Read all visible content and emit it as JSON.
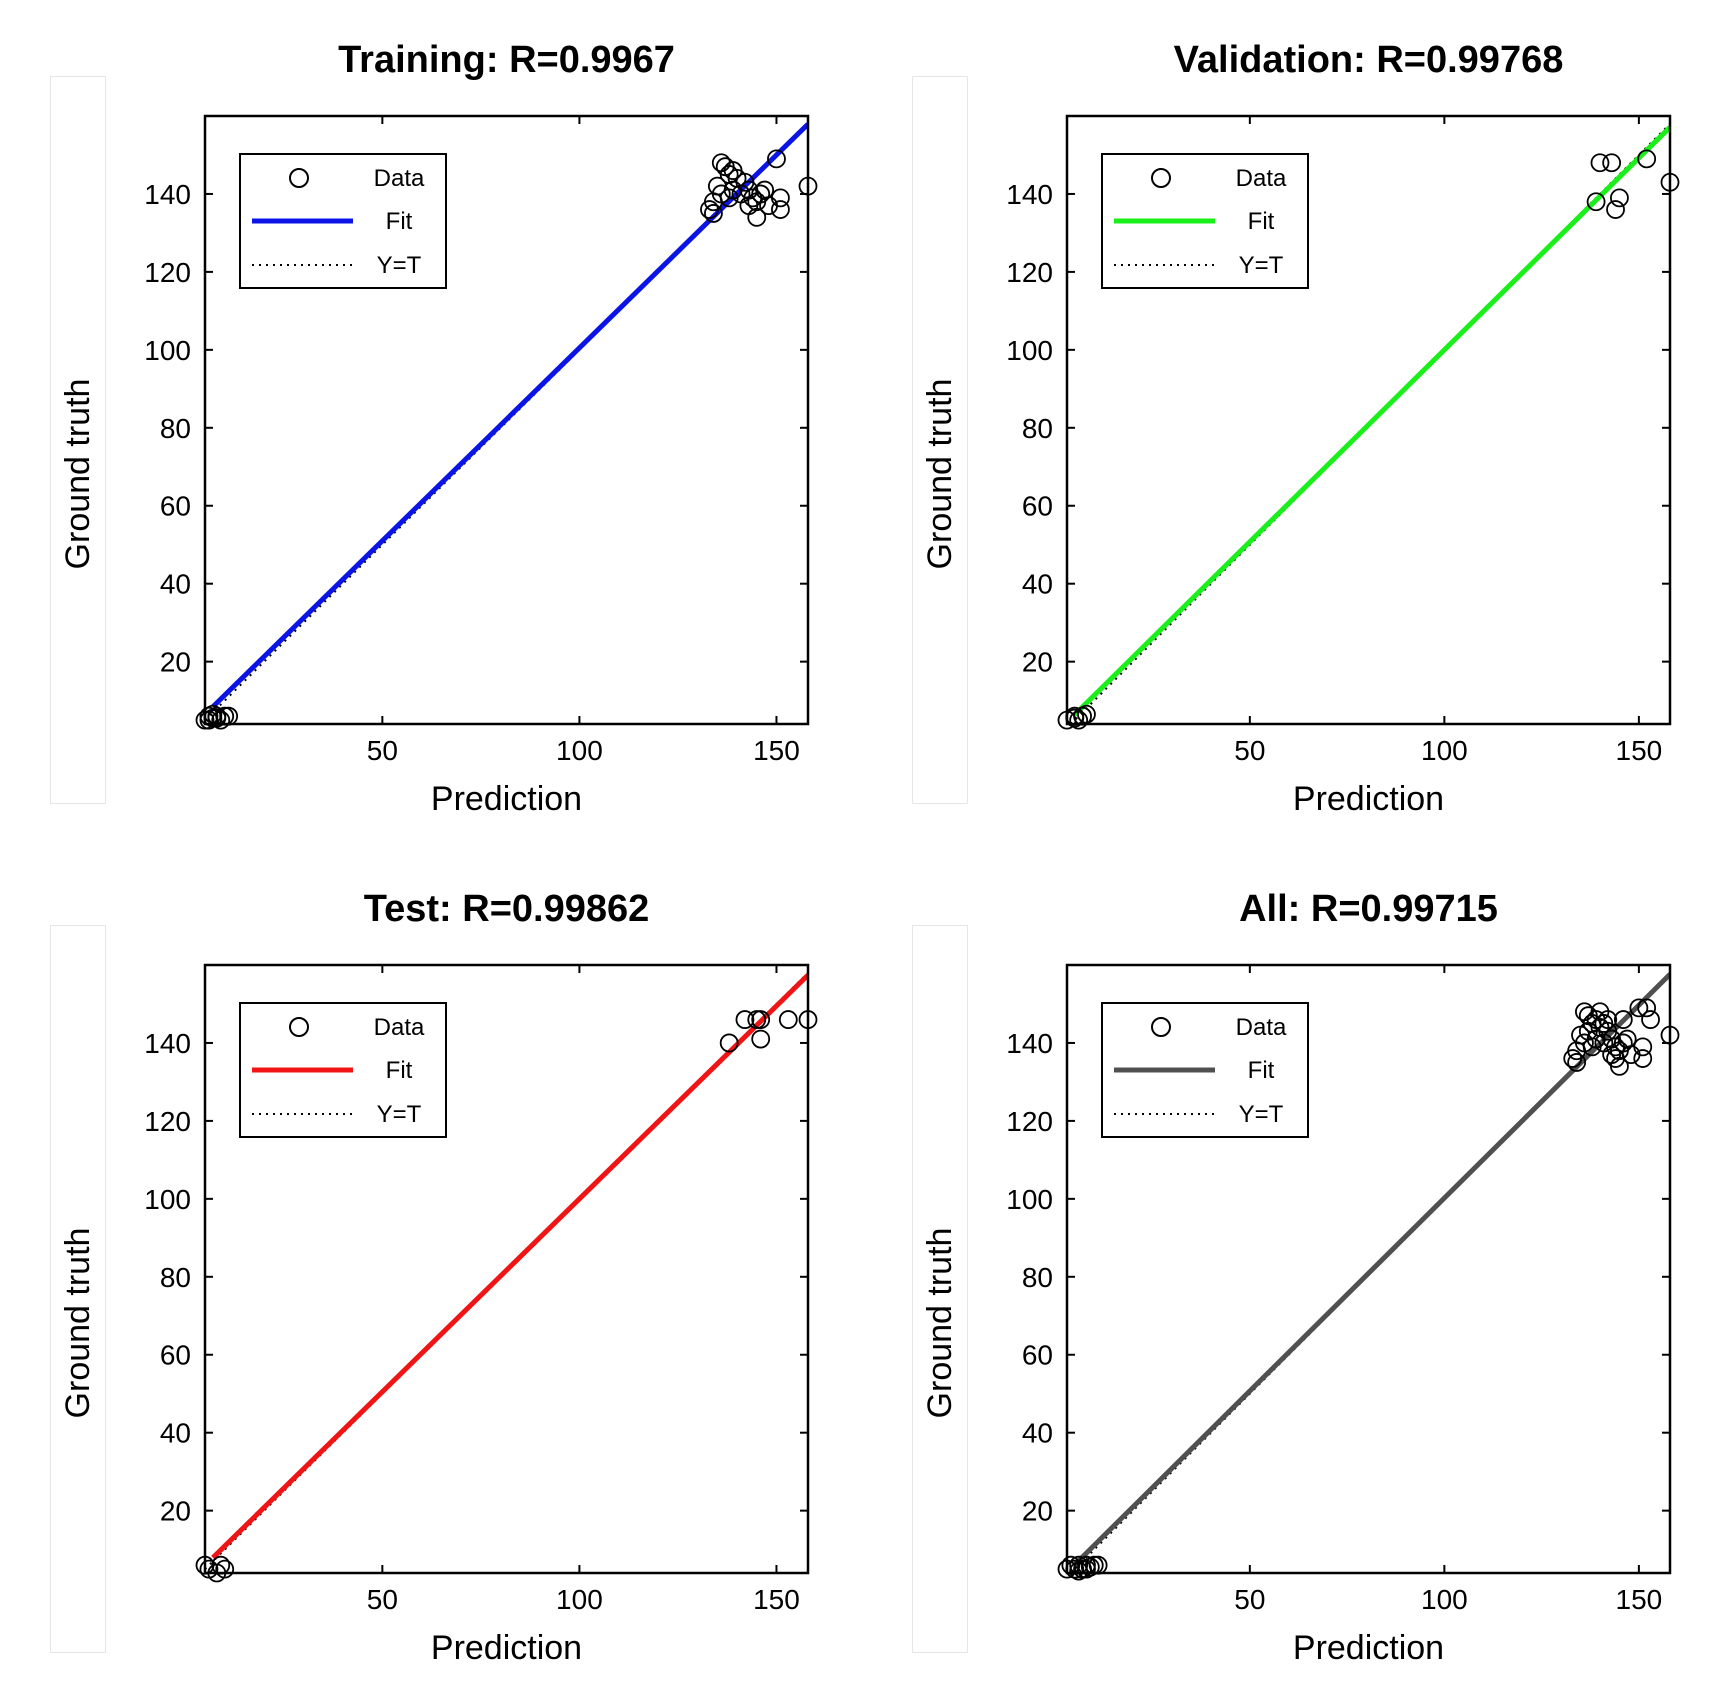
{
  "chart_data": [
    {
      "type": "scatter",
      "title": "Training: R=0.9967",
      "xlabel": "Prediction",
      "ylabel": "Ground truth",
      "xlim": [
        5,
        158
      ],
      "ylim": [
        4,
        160
      ],
      "xticks": [
        50,
        100,
        150
      ],
      "yticks": [
        20,
        40,
        60,
        80,
        100,
        120,
        140
      ],
      "fit_color": "#0a14e6",
      "fit": {
        "slope": 0.99,
        "intercept": 1.5
      },
      "legend": {
        "position": "top-left",
        "items": [
          "Data",
          "Fit",
          "Y=T"
        ]
      },
      "points": [
        [
          5,
          5
        ],
        [
          6,
          6
        ],
        [
          7,
          5.5
        ],
        [
          8,
          6
        ],
        [
          9,
          5
        ],
        [
          10,
          6
        ],
        [
          6,
          5
        ],
        [
          7,
          6.5
        ],
        [
          8,
          5.5
        ],
        [
          11,
          6
        ],
        [
          133,
          136
        ],
        [
          134,
          138
        ],
        [
          135,
          142
        ],
        [
          136,
          148
        ],
        [
          137,
          147
        ],
        [
          138,
          145
        ],
        [
          139,
          141
        ],
        [
          140,
          144
        ],
        [
          141,
          140
        ],
        [
          142,
          143
        ],
        [
          143,
          141
        ],
        [
          144,
          139
        ],
        [
          145,
          138
        ],
        [
          146,
          140
        ],
        [
          147,
          141
        ],
        [
          148,
          137
        ],
        [
          150,
          149
        ],
        [
          151,
          139
        ],
        [
          151,
          136
        ],
        [
          158,
          142
        ],
        [
          136,
          140
        ],
        [
          139,
          146
        ],
        [
          143,
          137
        ],
        [
          145,
          134
        ],
        [
          134,
          135
        ],
        [
          138,
          139
        ]
      ]
    },
    {
      "type": "scatter",
      "title": "Validation: R=0.99768",
      "xlabel": "Prediction",
      "ylabel": "Ground truth",
      "xlim": [
        3,
        158
      ],
      "ylim": [
        4,
        160
      ],
      "xticks": [
        50,
        100,
        150
      ],
      "yticks": [
        20,
        40,
        60,
        80,
        100,
        120,
        140
      ],
      "fit_color": "#19f019",
      "fit": {
        "slope": 0.985,
        "intercept": 1.5
      },
      "legend": {
        "position": "top-left",
        "items": [
          "Data",
          "Fit",
          "Y=T"
        ]
      },
      "points": [
        [
          3,
          5
        ],
        [
          5,
          6
        ],
        [
          6,
          5
        ],
        [
          7,
          6
        ],
        [
          8,
          6.5
        ],
        [
          5,
          5.5
        ],
        [
          139,
          138
        ],
        [
          140,
          148
        ],
        [
          143,
          148
        ],
        [
          144,
          136
        ],
        [
          145,
          139
        ],
        [
          152,
          149
        ],
        [
          158,
          143
        ]
      ]
    },
    {
      "type": "scatter",
      "title": "Test: R=0.99862",
      "xlabel": "Prediction",
      "ylabel": "Ground truth",
      "xlim": [
        5,
        158
      ],
      "ylim": [
        4,
        160
      ],
      "xticks": [
        50,
        100,
        150
      ],
      "yticks": [
        20,
        40,
        60,
        80,
        100,
        120,
        140
      ],
      "fit_color": "#f01414",
      "fit": {
        "slope": 0.99,
        "intercept": 1.0
      },
      "legend": {
        "position": "top-left",
        "items": [
          "Data",
          "Fit",
          "Y=T"
        ]
      },
      "points": [
        [
          5,
          6
        ],
        [
          6,
          5
        ],
        [
          8,
          4
        ],
        [
          9,
          6
        ],
        [
          10,
          5
        ],
        [
          138,
          140
        ],
        [
          142,
          146
        ],
        [
          145,
          146
        ],
        [
          146,
          146
        ],
        [
          146,
          141
        ],
        [
          153,
          146
        ],
        [
          158,
          146
        ]
      ]
    },
    {
      "type": "scatter",
      "title": "All: R=0.99715",
      "xlabel": "Prediction",
      "ylabel": "Ground truth",
      "xlim": [
        3,
        158
      ],
      "ylim": [
        4,
        160
      ],
      "xticks": [
        50,
        100,
        150
      ],
      "yticks": [
        20,
        40,
        60,
        80,
        100,
        120,
        140
      ],
      "fit_color": "#505050",
      "fit": {
        "slope": 0.99,
        "intercept": 1.2
      },
      "legend": {
        "position": "top-left",
        "items": [
          "Data",
          "Fit",
          "Y=T"
        ]
      },
      "points": [
        [
          3,
          5
        ],
        [
          4,
          6
        ],
        [
          5,
          5
        ],
        [
          6,
          6
        ],
        [
          7,
          5
        ],
        [
          8,
          6
        ],
        [
          9,
          5.5
        ],
        [
          10,
          6
        ],
        [
          11,
          6
        ],
        [
          6,
          4.5
        ],
        [
          8,
          5
        ],
        [
          133,
          136
        ],
        [
          134,
          138
        ],
        [
          135,
          142
        ],
        [
          136,
          148
        ],
        [
          137,
          147
        ],
        [
          138,
          145
        ],
        [
          139,
          141
        ],
        [
          140,
          144
        ],
        [
          141,
          140
        ],
        [
          142,
          143
        ],
        [
          143,
          141
        ],
        [
          144,
          139
        ],
        [
          145,
          138
        ],
        [
          146,
          140
        ],
        [
          147,
          141
        ],
        [
          148,
          137
        ],
        [
          150,
          149
        ],
        [
          151,
          139
        ],
        [
          151,
          136
        ],
        [
          158,
          142
        ],
        [
          136,
          140
        ],
        [
          139,
          146
        ],
        [
          143,
          137
        ],
        [
          145,
          134
        ],
        [
          134,
          135
        ],
        [
          138,
          139
        ],
        [
          140,
          148
        ],
        [
          144,
          136
        ],
        [
          152,
          149
        ],
        [
          142,
          146
        ],
        [
          146,
          146
        ],
        [
          153,
          146
        ],
        [
          137,
          143
        ],
        [
          141,
          145
        ]
      ]
    }
  ]
}
